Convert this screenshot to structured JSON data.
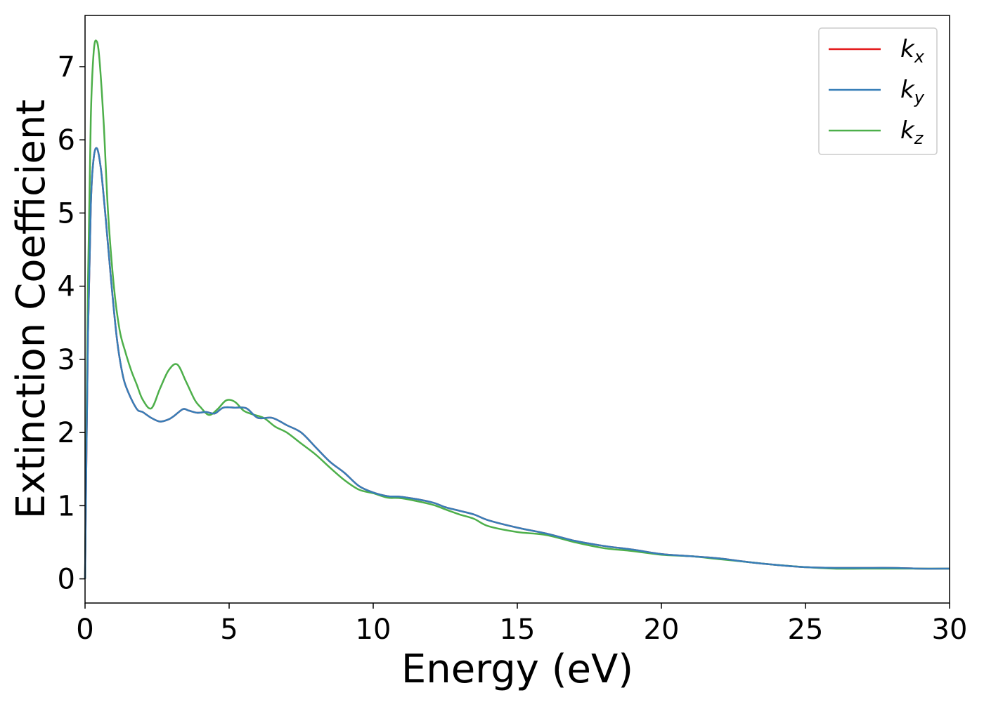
{
  "chart_data": {
    "type": "line",
    "title": "",
    "xlabel": "Energy (eV)",
    "ylabel": "Extinction Coefficient",
    "xlim": [
      0,
      30
    ],
    "ylim": [
      -0.33,
      7.7
    ],
    "xticks": [
      0,
      5,
      10,
      15,
      20,
      25,
      30
    ],
    "yticks": [
      0,
      1,
      2,
      3,
      4,
      5,
      6,
      7
    ],
    "grid": false,
    "legend_position": "top-right",
    "series": [
      {
        "name": "k",
        "subscript": "x",
        "color": "#e41a1c",
        "x": [
          0,
          0.1,
          0.2,
          0.3,
          0.42,
          0.55,
          0.7,
          0.9,
          1.1,
          1.3,
          1.5,
          1.8,
          2.0,
          2.3,
          2.6,
          2.9,
          3.1,
          3.4,
          3.6,
          3.9,
          4.2,
          4.5,
          4.8,
          5.2,
          5.6,
          6.0,
          6.5,
          7.0,
          7.5,
          8.0,
          8.5,
          9.0,
          9.5,
          10.0,
          10.5,
          11.0,
          12.0,
          12.5,
          13.0,
          13.5,
          14.0,
          15.0,
          16.0,
          17.0,
          18.0,
          19.0,
          20.0,
          21.0,
          22.0,
          23.0,
          24.0,
          25.0,
          26.0,
          27.0,
          28.0,
          29.0,
          30.0
        ],
        "y": [
          0.0,
          3.3,
          5.1,
          5.75,
          5.88,
          5.6,
          5.0,
          4.1,
          3.3,
          2.8,
          2.55,
          2.32,
          2.28,
          2.2,
          2.15,
          2.18,
          2.23,
          2.32,
          2.3,
          2.27,
          2.28,
          2.26,
          2.34,
          2.34,
          2.33,
          2.2,
          2.2,
          2.1,
          2.0,
          1.8,
          1.6,
          1.45,
          1.27,
          1.18,
          1.13,
          1.12,
          1.05,
          0.98,
          0.93,
          0.88,
          0.8,
          0.7,
          0.62,
          0.52,
          0.45,
          0.4,
          0.34,
          0.31,
          0.28,
          0.23,
          0.19,
          0.16,
          0.15,
          0.15,
          0.15,
          0.14,
          0.14
        ]
      },
      {
        "name": "k",
        "subscript": "y",
        "color": "#377eb8",
        "x": [
          0,
          0.1,
          0.2,
          0.3,
          0.42,
          0.55,
          0.7,
          0.9,
          1.1,
          1.3,
          1.5,
          1.8,
          2.0,
          2.3,
          2.6,
          2.9,
          3.1,
          3.4,
          3.6,
          3.9,
          4.2,
          4.5,
          4.8,
          5.2,
          5.6,
          6.0,
          6.5,
          7.0,
          7.5,
          8.0,
          8.5,
          9.0,
          9.5,
          10.0,
          10.5,
          11.0,
          12.0,
          12.5,
          13.0,
          13.5,
          14.0,
          15.0,
          16.0,
          17.0,
          18.0,
          19.0,
          20.0,
          21.0,
          22.0,
          23.0,
          24.0,
          25.0,
          26.0,
          27.0,
          28.0,
          29.0,
          30.0
        ],
        "y": [
          0.0,
          3.3,
          5.1,
          5.75,
          5.88,
          5.6,
          5.0,
          4.1,
          3.3,
          2.8,
          2.55,
          2.32,
          2.28,
          2.2,
          2.15,
          2.18,
          2.23,
          2.32,
          2.3,
          2.27,
          2.28,
          2.26,
          2.34,
          2.34,
          2.33,
          2.2,
          2.2,
          2.1,
          2.0,
          1.8,
          1.6,
          1.45,
          1.27,
          1.18,
          1.13,
          1.12,
          1.05,
          0.98,
          0.93,
          0.88,
          0.8,
          0.7,
          0.62,
          0.52,
          0.45,
          0.4,
          0.34,
          0.31,
          0.28,
          0.23,
          0.19,
          0.16,
          0.15,
          0.15,
          0.15,
          0.14,
          0.14
        ]
      },
      {
        "name": "k",
        "subscript": "z",
        "color": "#4daf4a",
        "x": [
          0,
          0.1,
          0.2,
          0.3,
          0.4,
          0.5,
          0.65,
          0.8,
          1.0,
          1.2,
          1.4,
          1.6,
          1.8,
          2.0,
          2.3,
          2.6,
          2.9,
          3.2,
          3.5,
          3.8,
          4.0,
          4.3,
          4.6,
          4.9,
          5.2,
          5.5,
          5.8,
          6.2,
          6.6,
          7.0,
          7.5,
          8.0,
          8.5,
          9.0,
          9.5,
          10.0,
          10.5,
          11.0,
          12.0,
          12.5,
          13.0,
          13.5,
          14.0,
          15.0,
          16.0,
          17.0,
          18.0,
          19.0,
          20.0,
          21.0,
          22.0,
          23.0,
          24.0,
          25.0,
          26.0,
          27.0,
          28.0,
          29.0,
          30.0
        ],
        "y": [
          0.0,
          4.0,
          6.3,
          7.2,
          7.35,
          7.1,
          6.2,
          5.0,
          4.0,
          3.4,
          3.1,
          2.85,
          2.65,
          2.45,
          2.33,
          2.6,
          2.85,
          2.93,
          2.7,
          2.45,
          2.35,
          2.24,
          2.32,
          2.44,
          2.42,
          2.3,
          2.25,
          2.2,
          2.08,
          2.0,
          1.85,
          1.7,
          1.52,
          1.35,
          1.22,
          1.17,
          1.11,
          1.1,
          1.02,
          0.95,
          0.88,
          0.82,
          0.72,
          0.64,
          0.6,
          0.5,
          0.42,
          0.38,
          0.33,
          0.31,
          0.27,
          0.23,
          0.19,
          0.16,
          0.14,
          0.14,
          0.14,
          0.14,
          0.14
        ]
      }
    ]
  }
}
